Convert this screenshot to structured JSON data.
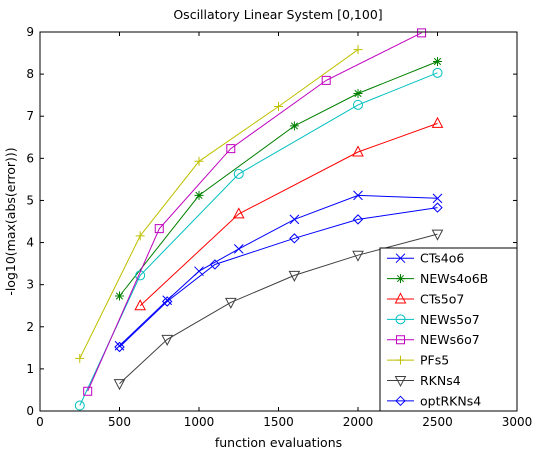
{
  "chart_data": {
    "type": "line",
    "title": "Oscillatory Linear System [0,100]",
    "xlabel": "function evaluations",
    "ylabel": "-log10(max(abs(error)))",
    "xlim": [
      0,
      3000
    ],
    "ylim": [
      0,
      9
    ],
    "xticks": [
      0,
      500,
      1000,
      1500,
      2000,
      2500,
      3000
    ],
    "yticks": [
      0,
      1,
      2,
      3,
      4,
      5,
      6,
      7,
      8,
      9
    ],
    "grid": false,
    "legend_position": "bottom-right",
    "series": [
      {
        "name": "CTs4o6",
        "color": "#0000ff",
        "marker": "x",
        "x": [
          500,
          800,
          1000,
          1250,
          1600,
          2000,
          2500
        ],
        "y": [
          1.55,
          2.63,
          3.32,
          3.85,
          4.55,
          5.12,
          5.05
        ]
      },
      {
        "name": "NEWs4o6B",
        "color": "#008000",
        "marker": "star",
        "x": [
          500,
          1000,
          1600,
          2000,
          2500
        ],
        "y": [
          2.73,
          5.12,
          6.77,
          7.54,
          8.3
        ]
      },
      {
        "name": "CTs5o7",
        "color": "#ff0000",
        "marker": "triangle-up",
        "x": [
          630,
          1250,
          2000,
          2500
        ],
        "y": [
          2.5,
          4.68,
          6.15,
          6.83
        ]
      },
      {
        "name": "NEWs5o7",
        "color": "#00bfbf",
        "marker": "circle",
        "x": [
          250,
          630,
          1250,
          2000,
          2500
        ],
        "y": [
          0.13,
          3.22,
          5.63,
          7.27,
          8.03
        ]
      },
      {
        "name": "NEWs6o7",
        "color": "#bf00bf",
        "marker": "square",
        "x": [
          300,
          750,
          1200,
          1800,
          2400
        ],
        "y": [
          0.47,
          4.33,
          6.23,
          7.85,
          8.98
        ]
      },
      {
        "name": "PFs5",
        "color": "#bfbf00",
        "marker": "plus",
        "x": [
          250,
          630,
          1000,
          1500,
          2000
        ],
        "y": [
          1.25,
          4.16,
          5.93,
          7.23,
          8.58
        ]
      },
      {
        "name": "RKNs4",
        "color": "#404040",
        "marker": "triangle-down",
        "x": [
          500,
          800,
          1200,
          1600,
          2000,
          2500
        ],
        "y": [
          0.65,
          1.7,
          2.58,
          3.22,
          3.7,
          4.2
        ]
      },
      {
        "name": "optRKNs4",
        "color": "#0000ff",
        "marker": "diamond",
        "x": [
          500,
          800,
          1100,
          1600,
          2000,
          2500
        ],
        "y": [
          1.52,
          2.6,
          3.48,
          4.1,
          4.55,
          4.83
        ]
      }
    ]
  }
}
